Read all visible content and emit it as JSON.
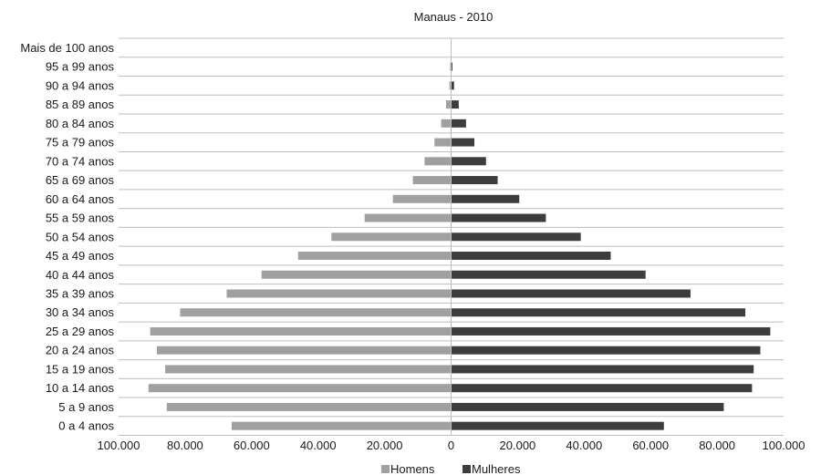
{
  "chart_data": {
    "type": "bar",
    "orientation": "horizontal",
    "title": "Manaus - 2010",
    "categories": [
      "0 a 4 anos",
      "5 a 9 anos",
      "10 a 14 anos",
      "15 a 19 anos",
      "20 a 24 anos",
      "25 a 29 anos",
      "30 a 34 anos",
      "35 a 39 anos",
      "40 a 44 anos",
      "45 a 49 anos",
      "50 a 54 anos",
      "55 a 59 anos",
      "60 a 64 anos",
      "65 a 69 anos",
      "70 a 74 anos",
      "75 a 79 anos",
      "80 a 84 anos",
      "85 a 89 anos",
      "90 a 94 anos",
      "95 a 99 anos",
      "Mais de 100 anos"
    ],
    "series": [
      {
        "name": "Homens",
        "color": "#a0a0a0",
        "values": [
          -66000,
          -85500,
          -91000,
          -86000,
          -88500,
          -90500,
          -81500,
          -67500,
          -57000,
          -46000,
          -36000,
          -26000,
          -17500,
          -11500,
          -8000,
          -5000,
          -3000,
          -1500,
          -500,
          -300,
          0
        ]
      },
      {
        "name": "Mulheres",
        "color": "#3d3d3d",
        "values": [
          64000,
          82000,
          90500,
          91000,
          93000,
          96000,
          88500,
          72000,
          58500,
          48000,
          39000,
          28500,
          20500,
          14000,
          10500,
          7000,
          4500,
          2300,
          900,
          400,
          100
        ]
      }
    ],
    "xlim": [
      -100000,
      100000
    ],
    "xticks": [
      -100000,
      -80000,
      -60000,
      -40000,
      -20000,
      0,
      20000,
      40000,
      60000,
      80000,
      100000
    ],
    "xtick_labels": [
      "100.000",
      "80.000",
      "60.000",
      "40.000",
      "20.000",
      "0",
      "20.000",
      "40.000",
      "60.000",
      "80.000",
      "100.000"
    ],
    "grid": true,
    "legend_position": "bottom-center"
  }
}
